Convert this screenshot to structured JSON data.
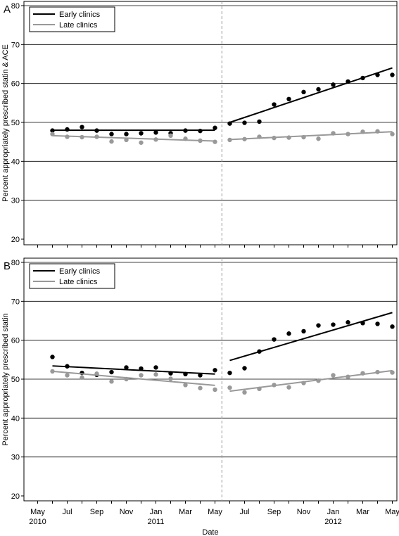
{
  "chart_data": [
    {
      "panel_label": "A",
      "type": "scatter",
      "ylabel": "Percent appropriately prescribed statin & ACE",
      "ylim": [
        20,
        80
      ],
      "yticks": [
        20,
        30,
        40,
        50,
        60,
        70,
        80
      ],
      "grid": true,
      "legend": {
        "placement": "top-left",
        "entries": [
          "Early clinics",
          "Late clinics"
        ]
      },
      "intervention_marker": {
        "x": "2011-05-15",
        "style": "dashed",
        "color": "#999999"
      },
      "series": [
        {
          "name": "Early clinics",
          "color": "#000000",
          "points": [
            {
              "x": "2010-06",
              "y": 47.9
            },
            {
              "x": "2010-07",
              "y": 48.2
            },
            {
              "x": "2010-08",
              "y": 48.8
            },
            {
              "x": "2010-09",
              "y": 47.9
            },
            {
              "x": "2010-10",
              "y": 47.0
            },
            {
              "x": "2010-11",
              "y": 47.0
            },
            {
              "x": "2010-12",
              "y": 47.2
            },
            {
              "x": "2011-01",
              "y": 47.4
            },
            {
              "x": "2011-02",
              "y": 47.2
            },
            {
              "x": "2011-03",
              "y": 47.9
            },
            {
              "x": "2011-04",
              "y": 47.8
            },
            {
              "x": "2011-05",
              "y": 48.6
            },
            {
              "x": "2011-06",
              "y": 49.7
            },
            {
              "x": "2011-07",
              "y": 49.9
            },
            {
              "x": "2011-08",
              "y": 50.2
            },
            {
              "x": "2011-09",
              "y": 54.6
            },
            {
              "x": "2011-10",
              "y": 56.0
            },
            {
              "x": "2011-11",
              "y": 57.8
            },
            {
              "x": "2011-12",
              "y": 58.5
            },
            {
              "x": "2012-01",
              "y": 59.7
            },
            {
              "x": "2012-02",
              "y": 60.5
            },
            {
              "x": "2012-03",
              "y": 61.4
            },
            {
              "x": "2012-04",
              "y": 62.2
            },
            {
              "x": "2012-05",
              "y": 62.2
            }
          ],
          "trend": [
            {
              "x0": "2010-06",
              "y0": 48.0,
              "x1": "2011-05",
              "y1": 48.0
            },
            {
              "x0": "2011-06",
              "y0": 50.0,
              "x1": "2012-05",
              "y1": 64.0
            }
          ]
        },
        {
          "name": "Late clinics",
          "color": "#999999",
          "points": [
            {
              "x": "2010-06",
              "y": 47.0
            },
            {
              "x": "2010-07",
              "y": 46.3
            },
            {
              "x": "2010-08",
              "y": 46.2
            },
            {
              "x": "2010-09",
              "y": 46.3
            },
            {
              "x": "2010-10",
              "y": 45.1
            },
            {
              "x": "2010-11",
              "y": 45.5
            },
            {
              "x": "2010-12",
              "y": 44.8
            },
            {
              "x": "2011-01",
              "y": 45.6
            },
            {
              "x": "2011-02",
              "y": 46.6
            },
            {
              "x": "2011-03",
              "y": 45.8
            },
            {
              "x": "2011-04",
              "y": 45.3
            },
            {
              "x": "2011-05",
              "y": 45.0
            },
            {
              "x": "2011-06",
              "y": 45.5
            },
            {
              "x": "2011-07",
              "y": 45.7
            },
            {
              "x": "2011-08",
              "y": 46.3
            },
            {
              "x": "2011-09",
              "y": 46.0
            },
            {
              "x": "2011-10",
              "y": 46.1
            },
            {
              "x": "2011-11",
              "y": 46.2
            },
            {
              "x": "2011-12",
              "y": 45.8
            },
            {
              "x": "2012-01",
              "y": 47.2
            },
            {
              "x": "2012-02",
              "y": 47.0
            },
            {
              "x": "2012-03",
              "y": 47.6
            },
            {
              "x": "2012-04",
              "y": 47.7
            },
            {
              "x": "2012-05",
              "y": 47.0
            }
          ],
          "trend": [
            {
              "x0": "2010-06",
              "y0": 46.6,
              "x1": "2011-05",
              "y1": 45.2
            },
            {
              "x0": "2011-06",
              "y0": 45.6,
              "x1": "2012-05",
              "y1": 47.6
            }
          ]
        }
      ]
    },
    {
      "panel_label": "B",
      "type": "scatter",
      "ylabel": "Percent appropriately prescribed statin",
      "xlabel": "Date",
      "ylim": [
        20,
        80
      ],
      "yticks": [
        20,
        30,
        40,
        50,
        60,
        70,
        80
      ],
      "grid": true,
      "legend": {
        "placement": "top-left",
        "entries": [
          "Early clinics",
          "Late clinics"
        ]
      },
      "intervention_marker": {
        "x": "2011-05-15",
        "style": "dashed",
        "color": "#999999"
      },
      "xticks": [
        {
          "x": "2010-05",
          "label": "May",
          "year": "2010"
        },
        {
          "x": "2010-07",
          "label": "Jul"
        },
        {
          "x": "2010-09",
          "label": "Sep"
        },
        {
          "x": "2010-11",
          "label": "Nov"
        },
        {
          "x": "2011-01",
          "label": "Jan",
          "year": "2011"
        },
        {
          "x": "2011-03",
          "label": "Mar"
        },
        {
          "x": "2011-05",
          "label": "May"
        },
        {
          "x": "2011-07",
          "label": "Jul"
        },
        {
          "x": "2011-09",
          "label": "Sep"
        },
        {
          "x": "2011-11",
          "label": "Nov"
        },
        {
          "x": "2012-01",
          "label": "Jan",
          "year": "2012"
        },
        {
          "x": "2012-03",
          "label": "Mar"
        },
        {
          "x": "2012-05",
          "label": "May"
        }
      ],
      "series": [
        {
          "name": "Early clinics",
          "color": "#000000",
          "points": [
            {
              "x": "2010-06",
              "y": 55.7
            },
            {
              "x": "2010-07",
              "y": 53.3
            },
            {
              "x": "2010-08",
              "y": 51.6
            },
            {
              "x": "2010-09",
              "y": 51.1
            },
            {
              "x": "2010-10",
              "y": 51.8
            },
            {
              "x": "2010-11",
              "y": 53.0
            },
            {
              "x": "2010-12",
              "y": 52.7
            },
            {
              "x": "2011-01",
              "y": 53.0
            },
            {
              "x": "2011-02",
              "y": 51.5
            },
            {
              "x": "2011-03",
              "y": 51.3
            },
            {
              "x": "2011-04",
              "y": 51.0
            },
            {
              "x": "2011-05",
              "y": 52.3
            },
            {
              "x": "2011-06",
              "y": 51.6
            },
            {
              "x": "2011-07",
              "y": 52.8
            },
            {
              "x": "2011-08",
              "y": 57.1
            },
            {
              "x": "2011-09",
              "y": 60.2
            },
            {
              "x": "2011-10",
              "y": 61.7
            },
            {
              "x": "2011-11",
              "y": 62.3
            },
            {
              "x": "2011-12",
              "y": 63.8
            },
            {
              "x": "2012-01",
              "y": 64.0
            },
            {
              "x": "2012-02",
              "y": 64.6
            },
            {
              "x": "2012-03",
              "y": 64.4
            },
            {
              "x": "2012-04",
              "y": 64.2
            },
            {
              "x": "2012-05",
              "y": 63.5
            }
          ],
          "trend": [
            {
              "x0": "2010-06",
              "y0": 53.4,
              "x1": "2011-05",
              "y1": 51.3
            },
            {
              "x0": "2011-06",
              "y0": 54.8,
              "x1": "2012-05",
              "y1": 67.1
            }
          ]
        },
        {
          "name": "Late clinics",
          "color": "#999999",
          "points": [
            {
              "x": "2010-06",
              "y": 52.0
            },
            {
              "x": "2010-07",
              "y": 51.0
            },
            {
              "x": "2010-08",
              "y": 50.4
            },
            {
              "x": "2010-09",
              "y": 51.4
            },
            {
              "x": "2010-10",
              "y": 49.4
            },
            {
              "x": "2010-11",
              "y": 50.0
            },
            {
              "x": "2010-12",
              "y": 51.0
            },
            {
              "x": "2011-01",
              "y": 51.2
            },
            {
              "x": "2011-02",
              "y": 50.1
            },
            {
              "x": "2011-03",
              "y": 48.5
            },
            {
              "x": "2011-04",
              "y": 47.7
            },
            {
              "x": "2011-05",
              "y": 47.3
            },
            {
              "x": "2011-06",
              "y": 47.8
            },
            {
              "x": "2011-07",
              "y": 46.6
            },
            {
              "x": "2011-08",
              "y": 47.5
            },
            {
              "x": "2011-09",
              "y": 48.5
            },
            {
              "x": "2011-10",
              "y": 47.9
            },
            {
              "x": "2011-11",
              "y": 49.0
            },
            {
              "x": "2011-12",
              "y": 49.6
            },
            {
              "x": "2012-01",
              "y": 51.0
            },
            {
              "x": "2012-02",
              "y": 50.6
            },
            {
              "x": "2012-03",
              "y": 51.5
            },
            {
              "x": "2012-04",
              "y": 51.8
            },
            {
              "x": "2012-05",
              "y": 51.7
            }
          ],
          "trend": [
            {
              "x0": "2010-06",
              "y0": 52.0,
              "x1": "2011-05",
              "y1": 48.4
            },
            {
              "x0": "2011-06",
              "y0": 46.9,
              "x1": "2012-05",
              "y1": 52.2
            }
          ]
        }
      ]
    }
  ]
}
